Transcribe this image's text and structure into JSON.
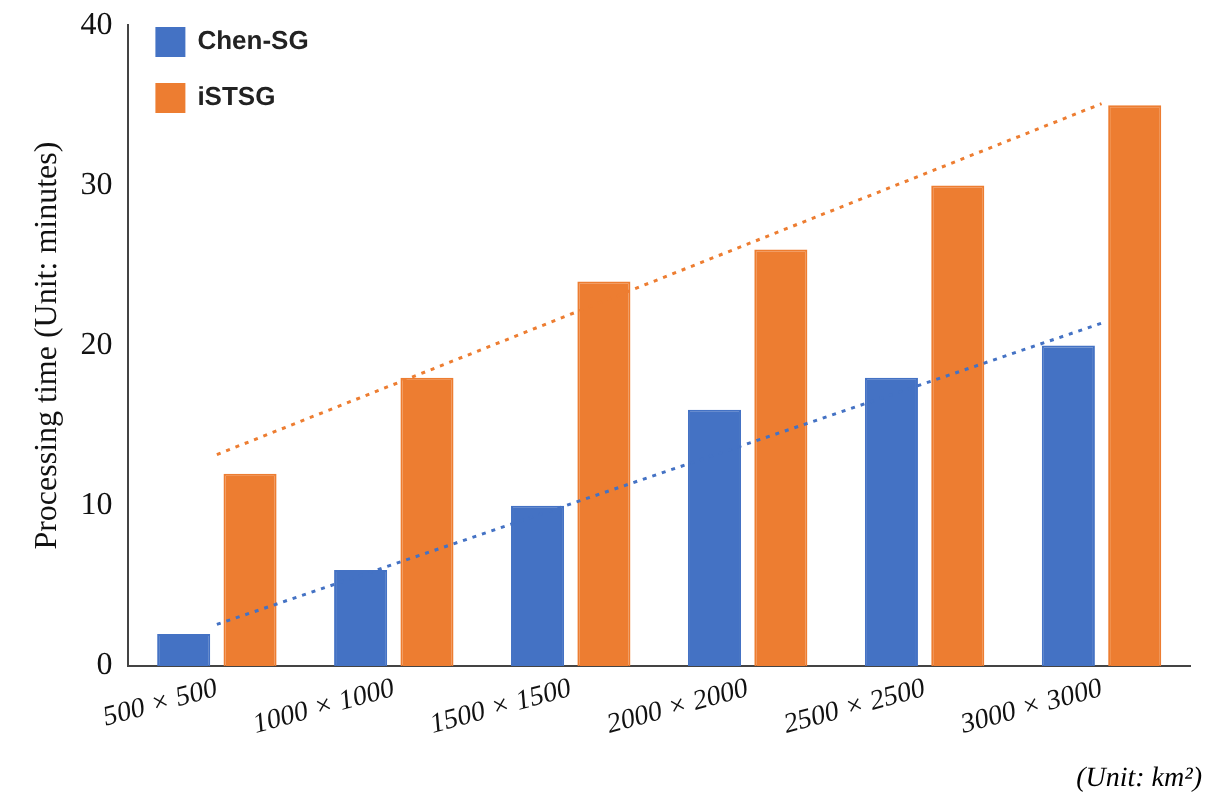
{
  "chart_data": {
    "type": "bar",
    "ylabel": "Processing time (Unit: minutes)",
    "categories": [
      "500 × 500",
      "1000 × 1000",
      "1500 × 1500",
      "2000 × 2000",
      "2500 × 2500",
      "3000 × 3000"
    ],
    "series": [
      {
        "name": "Chen-SG",
        "color": "#4472c4",
        "values": [
          2,
          6,
          10,
          16,
          18,
          20
        ]
      },
      {
        "name": "iSTSG",
        "color": "#ed7d31",
        "values": [
          12,
          18,
          24,
          26,
          30,
          35
        ]
      },
      {
        "type": "line",
        "color": "#4472c4",
        "line_style": "dotted",
        "marker": "none",
        "x": [
          "500 × 500",
          "3000 × 3000"
        ],
        "values": [
          2.6,
          21.4
        ]
      },
      {
        "type": "line",
        "color": "#ed7d31",
        "line_style": "dotted",
        "marker": "none",
        "x": [
          "500 × 500",
          "3000 × 3000"
        ],
        "values": [
          13.2,
          35.1
        ]
      }
    ],
    "ylim": [
      0,
      40
    ],
    "yticks": [
      0,
      10,
      20,
      30,
      40
    ],
    "grid": false,
    "legend": "top left",
    "annotations": [
      "(Unit: km²)"
    ]
  }
}
